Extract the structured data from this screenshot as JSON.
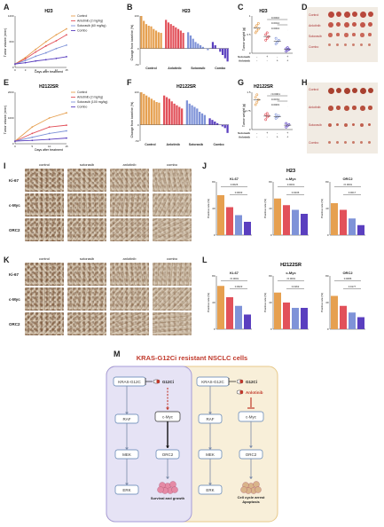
{
  "panels": {
    "A": "A",
    "B": "B",
    "C": "C",
    "D": "D",
    "E": "E",
    "F": "F",
    "G": "G",
    "H": "H",
    "I": "I",
    "J": "J",
    "K": "K",
    "L": "L",
    "M": "M"
  },
  "titles": {
    "A": "H23",
    "B": "H23",
    "C": "H23",
    "E": "H2122SR",
    "F": "H2122SR",
    "G": "H2122SR",
    "J": "H23",
    "L": "H2122SR"
  },
  "axes": {
    "tumor_volume": "Tumor volume (mm³)",
    "days": "Days after treatment",
    "change": "Change from baseline (%)",
    "tumor_weight": "Tumor weight (g)",
    "positive": "Positive rate (%)"
  },
  "legend_top": [
    "Control",
    "Anlotinib (2 mg/kg)",
    "Sotorasib (60 mg/kg)",
    "Combo"
  ],
  "legend_bottom": [
    "Control",
    "Anlotinib (2 mg/kg)",
    "Sotorasib (100 mg/kg)",
    "Combo"
  ],
  "waterfall_groups": [
    "Control",
    "Anlotinib",
    "Sotorasib",
    "Combo"
  ],
  "weight_rows": [
    "Sotorasib",
    "Anlotinib"
  ],
  "weight_signs": [
    [
      "-",
      "+",
      "-",
      "+"
    ],
    [
      "-",
      "-",
      "+",
      "+"
    ]
  ],
  "pvals_C": [
    "0.0002",
    "0.0014",
    "0.0004"
  ],
  "pvals_G": [
    "<0.0001",
    "0.0154",
    "0.0003"
  ],
  "ihc_cols": [
    "control",
    "sotorasib",
    "anlotinib",
    "combo"
  ],
  "ihc_rows": [
    "Ki-67",
    "c-Myc",
    "ORC2"
  ],
  "photo_labels_D": [
    "Control",
    "Anlotinib",
    "Sotorasib",
    "Combo"
  ],
  "photo_labels_H": [
    "Control",
    "Anlotinib",
    "Sotorasib",
    "Combo"
  ],
  "bar_titles": [
    "Ki-67",
    "c-Myc",
    "ORC2"
  ],
  "pvals_J": [
    [
      "0.0026",
      "0.0003"
    ],
    [
      "0.0001",
      "0.0236"
    ],
    [
      "<0.0001",
      "0.0017"
    ]
  ],
  "pvals_L": [
    [
      "<0.0001",
      "0.0023"
    ],
    [
      "<0.0001",
      "0.1962"
    ],
    [
      "0.0086",
      "0.0177"
    ]
  ],
  "chart_data": [
    {
      "type": "line",
      "title": "H23",
      "x": [
        0,
        3,
        6,
        9,
        12,
        15
      ],
      "series": [
        {
          "name": "Control",
          "values": [
            80,
            230,
            420,
            600,
            760,
            900
          ]
        },
        {
          "name": "Anlotinib (2 mg/kg)",
          "values": [
            80,
            200,
            360,
            500,
            620,
            760
          ]
        },
        {
          "name": "Sotorasib (60 mg/kg)",
          "values": [
            80,
            160,
            260,
            340,
            440,
            520
          ]
        },
        {
          "name": "Combo",
          "values": [
            80,
            110,
            150,
            180,
            210,
            250
          ]
        }
      ],
      "ylim": [
        0,
        1200
      ],
      "xlim": [
        0,
        15
      ]
    },
    {
      "type": "bar",
      "title": "H23",
      "series": [
        {
          "name": "Control",
          "values": [
            100,
            85,
            75,
            70,
            68,
            60,
            55,
            50,
            48
          ]
        },
        {
          "name": "Anlotinib",
          "values": [
            88,
            80,
            75,
            70,
            65,
            60,
            55,
            48
          ]
        },
        {
          "name": "Sotorasib",
          "values": [
            50,
            40,
            30,
            20,
            15,
            10,
            5,
            0,
            -5
          ]
        },
        {
          "name": "Combo",
          "values": [
            20,
            10,
            0,
            -10,
            -20,
            -30,
            -40
          ]
        }
      ],
      "ylim": [
        -50,
        100
      ]
    },
    {
      "type": "scatter",
      "title": "H23",
      "series": [
        {
          "name": "Control",
          "values": [
            0.55,
            0.6,
            0.65,
            0.7,
            0.75,
            0.8
          ]
        },
        {
          "name": "Anlotinib",
          "values": [
            0.35,
            0.4,
            0.45,
            0.5,
            0.55
          ]
        },
        {
          "name": "Sotorasib",
          "values": [
            0.25,
            0.3,
            0.35,
            0.4
          ]
        },
        {
          "name": "Combo",
          "values": [
            0.05,
            0.08,
            0.1,
            0.12,
            0.15
          ]
        }
      ],
      "ylim": [
        0,
        1.0
      ]
    },
    {
      "type": "line",
      "title": "H2122SR",
      "x": [
        0,
        5,
        10,
        15
      ],
      "series": [
        {
          "name": "Control",
          "values": [
            100,
            650,
            1000,
            1200
          ]
        },
        {
          "name": "Anlotinib (2 mg/kg)",
          "values": [
            100,
            400,
            650,
            720
          ]
        },
        {
          "name": "Sotorasib (100 mg/kg)",
          "values": [
            100,
            250,
            400,
            500
          ]
        },
        {
          "name": "Combo",
          "values": [
            100,
            130,
            170,
            220
          ]
        }
      ],
      "ylim": [
        0,
        2000
      ],
      "xlim": [
        0,
        15
      ]
    },
    {
      "type": "bar",
      "title": "H2122SR",
      "series": [
        {
          "name": "Control",
          "values": [
            100,
            95,
            90,
            85,
            80,
            75,
            70,
            68
          ]
        },
        {
          "name": "Anlotinib",
          "values": [
            90,
            85,
            80,
            72,
            65,
            60,
            55,
            50
          ]
        },
        {
          "name": "Sotorasib",
          "values": [
            75,
            65,
            60,
            55,
            50,
            40,
            35,
            30
          ]
        },
        {
          "name": "Combo",
          "values": [
            20,
            15,
            10,
            5,
            0,
            -5,
            -10,
            -25
          ]
        }
      ],
      "ylim": [
        -50,
        100
      ]
    },
    {
      "type": "scatter",
      "title": "H2122SR",
      "series": [
        {
          "name": "Control",
          "values": [
            1.0,
            1.1,
            1.2,
            1.3,
            1.4
          ]
        },
        {
          "name": "Anlotinib",
          "values": [
            0.4,
            0.5,
            0.55,
            0.6,
            0.65
          ]
        },
        {
          "name": "Sotorasib",
          "values": [
            0.45,
            0.5,
            0.55,
            0.6
          ]
        },
        {
          "name": "Combo",
          "values": [
            0.1,
            0.15,
            0.2,
            0.25
          ]
        }
      ],
      "ylim": [
        0,
        1.5
      ]
    },
    {
      "type": "bar",
      "title": "Ki-67",
      "categories": [
        "Control",
        "Sotorasib",
        "Anlotinib",
        "Combo"
      ],
      "values": [
        60,
        42,
        30,
        20
      ],
      "ylim": [
        0,
        80
      ]
    },
    {
      "type": "bar",
      "title": "c-Myc",
      "categories": [
        "Control",
        "Sotorasib",
        "Anlotinib",
        "Combo"
      ],
      "values": [
        55,
        45,
        38,
        32
      ],
      "ylim": [
        0,
        80
      ]
    },
    {
      "type": "bar",
      "title": "ORC2",
      "categories": [
        "Control",
        "Sotorasib",
        "Anlotinib",
        "Combo"
      ],
      "values": [
        48,
        38,
        25,
        15
      ],
      "ylim": [
        0,
        80
      ]
    },
    {
      "type": "bar",
      "title": "Ki-67",
      "categories": [
        "Control",
        "Sotorasib",
        "Anlotinib",
        "Combo"
      ],
      "values": [
        65,
        48,
        35,
        22
      ],
      "ylim": [
        0,
        80
      ]
    },
    {
      "type": "bar",
      "title": "c-Myc",
      "categories": [
        "Control",
        "Sotorasib",
        "Anlotinib",
        "Combo"
      ],
      "values": [
        55,
        40,
        32,
        32
      ],
      "ylim": [
        0,
        80
      ]
    },
    {
      "type": "bar",
      "title": "ORC2",
      "categories": [
        "Control",
        "Sotorasib",
        "Anlotinib",
        "Combo"
      ],
      "values": [
        50,
        35,
        25,
        18
      ],
      "ylim": [
        0,
        80
      ]
    }
  ],
  "schematic": {
    "heading": "KRAS-G12Ci resistant NSCLC cells",
    "left": {
      "kras": "KRAS-G12C",
      "drug": "G12Ci",
      "raf": "RAF",
      "mek": "MEK",
      "erk": "ERK",
      "myc": "c-Myc",
      "orc2": "ORC2",
      "outcome": "Survival and growth"
    },
    "right": {
      "kras": "KRAS-G12C",
      "drug1": "G12Ci",
      "drug2": "Anlotinib",
      "raf": "RAF",
      "mek": "MEK",
      "erk": "ERK",
      "myc": "c-Myc",
      "orc2": "ORC2",
      "outcome": "Cell cycle arrest\nApoptosis"
    }
  },
  "colors": {
    "control": "#e6a050",
    "anlotinib": "#e2515a",
    "sotorasib": "#7f93d8",
    "combo": "#5a3fbf",
    "red": "#c0392b",
    "leftbg": "#e6e3f5",
    "rightbg": "#f8efd9"
  }
}
